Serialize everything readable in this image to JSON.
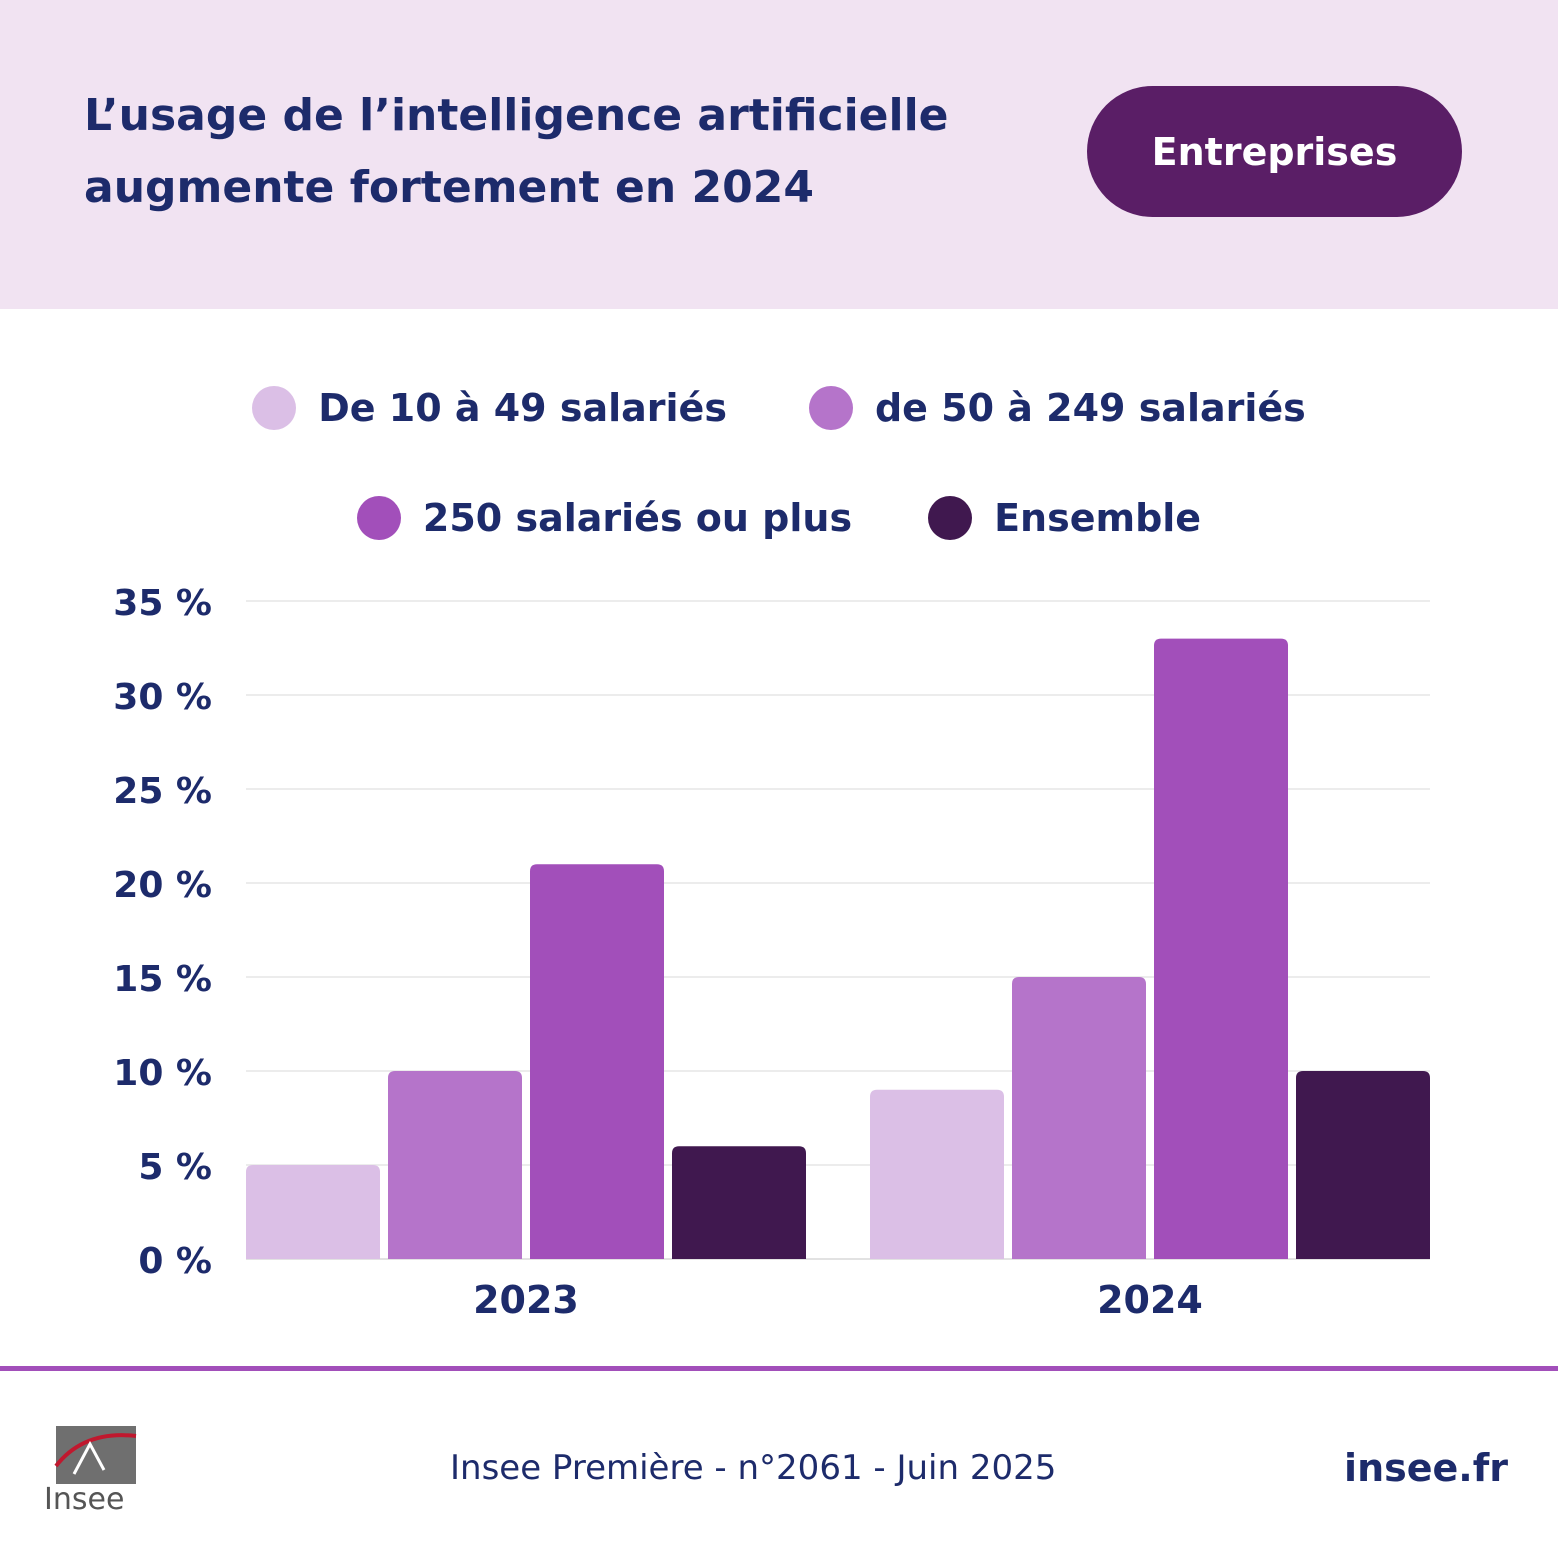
{
  "header": {
    "title_line1": "L’usage de l’intelligence artificielle",
    "title_line2": "augmente fortement en 2024",
    "badge": "Entreprises"
  },
  "chart_data": {
    "type": "bar",
    "categories": [
      "2023",
      "2024"
    ],
    "series": [
      {
        "name": "De 10 à 49 salariés",
        "values": [
          5,
          9
        ],
        "color": "#dbbfe6"
      },
      {
        "name": "de 50 à 249 salariés",
        "values": [
          10,
          15
        ],
        "color": "#b574ca"
      },
      {
        "name": "250 salariés ou plus",
        "values": [
          21,
          33
        ],
        "color": "#a24fba"
      },
      {
        "name": "Ensemble",
        "values": [
          6,
          10
        ],
        "color": "#40184f"
      }
    ],
    "ylim": [
      0,
      35
    ],
    "yticks": [
      "0 %",
      "5 %",
      "10 %",
      "15 %",
      "20 %",
      "25 %",
      "30 %",
      "35 %"
    ],
    "grid": true,
    "legend": "top"
  },
  "footer": {
    "source": "Insee Première - n°2061 - Juin 2025",
    "link": "insee.fr",
    "logo_text": "Insee"
  }
}
